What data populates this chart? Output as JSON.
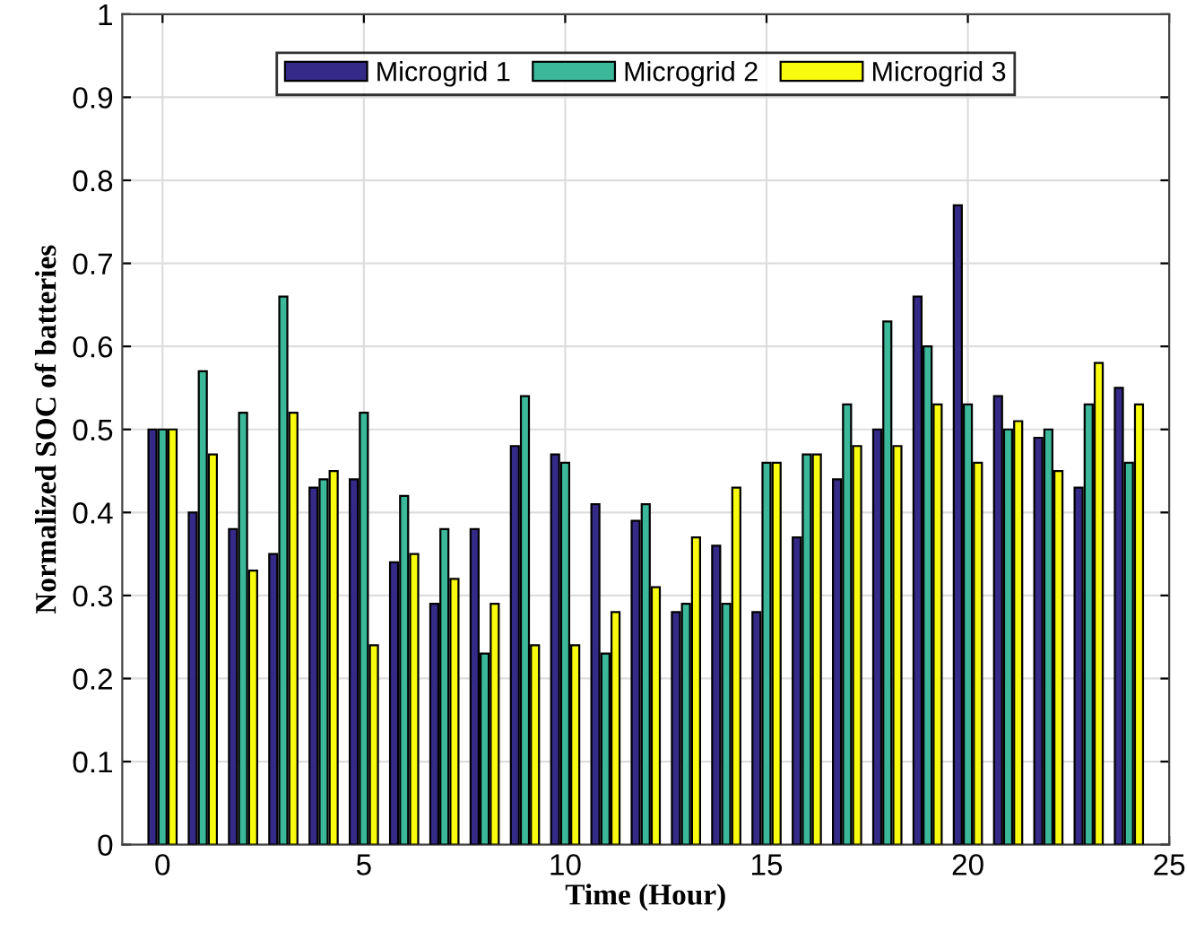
{
  "chart_data": {
    "type": "bar",
    "xlabel": "Time (Hour)",
    "ylabel": "Normalized SOC of batteries",
    "x": [
      0,
      1,
      2,
      3,
      4,
      5,
      6,
      7,
      8,
      9,
      10,
      11,
      12,
      13,
      14,
      15,
      16,
      17,
      18,
      19,
      20,
      21,
      22,
      23,
      24
    ],
    "series": [
      {
        "name": "Microgrid 1",
        "color": "#352a87",
        "values": [
          0.5,
          0.4,
          0.38,
          0.35,
          0.43,
          0.44,
          0.34,
          0.29,
          0.38,
          0.48,
          0.47,
          0.41,
          0.39,
          0.28,
          0.36,
          0.28,
          0.37,
          0.44,
          0.5,
          0.66,
          0.77,
          0.54,
          0.49,
          0.43,
          0.55
        ]
      },
      {
        "name": "Microgrid 2",
        "color": "#3bb89a",
        "values": [
          0.5,
          0.57,
          0.52,
          0.66,
          0.44,
          0.52,
          0.42,
          0.38,
          0.23,
          0.54,
          0.46,
          0.23,
          0.41,
          0.29,
          0.29,
          0.46,
          0.47,
          0.53,
          0.63,
          0.6,
          0.53,
          0.5,
          0.5,
          0.53,
          0.46
        ]
      },
      {
        "name": "Microgrid 3",
        "color": "#f9fb0e",
        "values": [
          0.5,
          0.47,
          0.33,
          0.52,
          0.45,
          0.24,
          0.35,
          0.32,
          0.29,
          0.24,
          0.24,
          0.28,
          0.31,
          0.37,
          0.43,
          0.46,
          0.47,
          0.48,
          0.48,
          0.53,
          0.46,
          0.51,
          0.45,
          0.58,
          0.53
        ]
      }
    ],
    "xlim": [
      -1,
      25
    ],
    "xticks": [
      0,
      5,
      10,
      15,
      20,
      25
    ],
    "ylim": [
      0,
      1
    ],
    "yticks": [
      0,
      0.1,
      0.2,
      0.3,
      0.4,
      0.5,
      0.6,
      0.7,
      0.8,
      0.9,
      1
    ],
    "grid": true,
    "legend": "top"
  }
}
